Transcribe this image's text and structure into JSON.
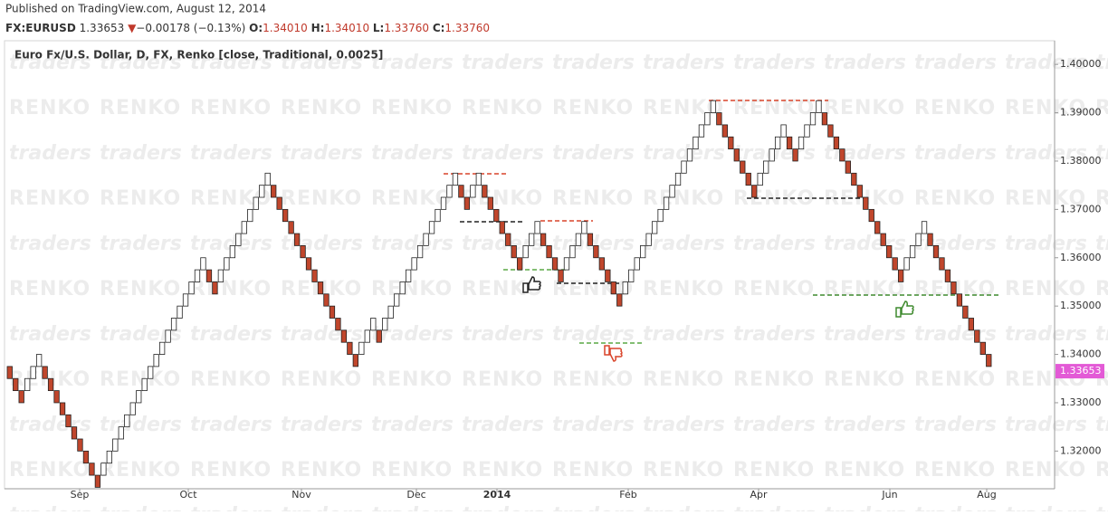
{
  "header": {
    "published": "Published on TradingView.com, August 12, 2014",
    "symbol": "FX:EURUSD",
    "price": 1.33653,
    "arrow": "▼",
    "change": "−0.00178 (−0.13%)",
    "ohlc": [
      {
        "label": "O:",
        "value": "1.34010"
      },
      {
        "label": "H:",
        "value": "1.34010"
      },
      {
        "label": "L:",
        "value": "1.33760"
      },
      {
        "label": "C:",
        "value": "1.33760"
      }
    ]
  },
  "chart_data": {
    "type": "renko",
    "title": "Euro Fx/U.S. Dollar, D, FX, Renko [close, Traditional, 0.0025]",
    "box_size": 0.0025,
    "up_color": "#ffffff",
    "down_color": "#c0462c",
    "watermark": [
      "RENKO",
      "traders"
    ],
    "x_labels": [
      "Sep",
      "Oct",
      "Nov",
      "Dec",
      "2014",
      "Feb",
      "Apr",
      "Jun",
      "Aug"
    ],
    "ylim": [
      1.3122,
      1.4049
    ],
    "yticks": [
      {
        "value": 1.32,
        "label": "1.32000"
      },
      {
        "value": 1.33,
        "label": "1.33000"
      },
      {
        "value": 1.34,
        "label": "1.34000"
      },
      {
        "value": 1.35,
        "label": "1.35000"
      },
      {
        "value": 1.36,
        "label": "1.36000"
      },
      {
        "value": 1.37,
        "label": "1.37000"
      },
      {
        "value": 1.38,
        "label": "1.38000"
      },
      {
        "value": 1.39,
        "label": "1.39000"
      },
      {
        "value": 1.4,
        "label": "1.40000"
      }
    ],
    "values": [
      1.335,
      1.3325,
      1.33,
      1.335,
      1.3375,
      1.34,
      1.335,
      1.3325,
      1.33,
      1.3275,
      1.325,
      1.3225,
      1.32,
      1.3175,
      1.315,
      1.3125,
      1.3175,
      1.32,
      1.3225,
      1.325,
      1.3275,
      1.33,
      1.3325,
      1.335,
      1.3375,
      1.34,
      1.3425,
      1.345,
      1.3475,
      1.35,
      1.3525,
      1.355,
      1.3575,
      1.36,
      1.355,
      1.3525,
      1.3575,
      1.36,
      1.3625,
      1.365,
      1.3675,
      1.37,
      1.3725,
      1.375,
      1.3775,
      1.3725,
      1.37,
      1.3675,
      1.365,
      1.3625,
      1.36,
      1.3575,
      1.355,
      1.3525,
      1.35,
      1.3475,
      1.345,
      1.3425,
      1.34,
      1.3375,
      1.3425,
      1.345,
      1.3475,
      1.3425,
      1.3475,
      1.35,
      1.3525,
      1.355,
      1.3575,
      1.36,
      1.3625,
      1.365,
      1.3675,
      1.37,
      1.3725,
      1.375,
      1.3775,
      1.3725,
      1.37,
      1.375,
      1.3775,
      1.3725,
      1.37,
      1.3675,
      1.365,
      1.3625,
      1.36,
      1.3575,
      1.3625,
      1.365,
      1.3675,
      1.3625,
      1.36,
      1.3575,
      1.355,
      1.36,
      1.3625,
      1.365,
      1.3675,
      1.3625,
      1.36,
      1.3575,
      1.355,
      1.3525,
      1.35,
      1.355,
      1.3575,
      1.36,
      1.3625,
      1.365,
      1.3675,
      1.37,
      1.3725,
      1.375,
      1.3775,
      1.38,
      1.3825,
      1.385,
      1.3875,
      1.39,
      1.3925,
      1.3875,
      1.385,
      1.3825,
      1.38,
      1.3775,
      1.375,
      1.3725,
      1.3775,
      1.38,
      1.3825,
      1.385,
      1.3875,
      1.3825,
      1.38,
      1.385,
      1.3875,
      1.39,
      1.3925,
      1.3875,
      1.385,
      1.3825,
      1.38,
      1.3775,
      1.375,
      1.3725,
      1.37,
      1.3675,
      1.365,
      1.3625,
      1.36,
      1.3575,
      1.355,
      1.36,
      1.3625,
      1.365,
      1.3675,
      1.3625,
      1.36,
      1.3575,
      1.355,
      1.3525,
      1.35,
      1.3475,
      1.345,
      1.3425,
      1.34,
      1.3375
    ]
  }
}
